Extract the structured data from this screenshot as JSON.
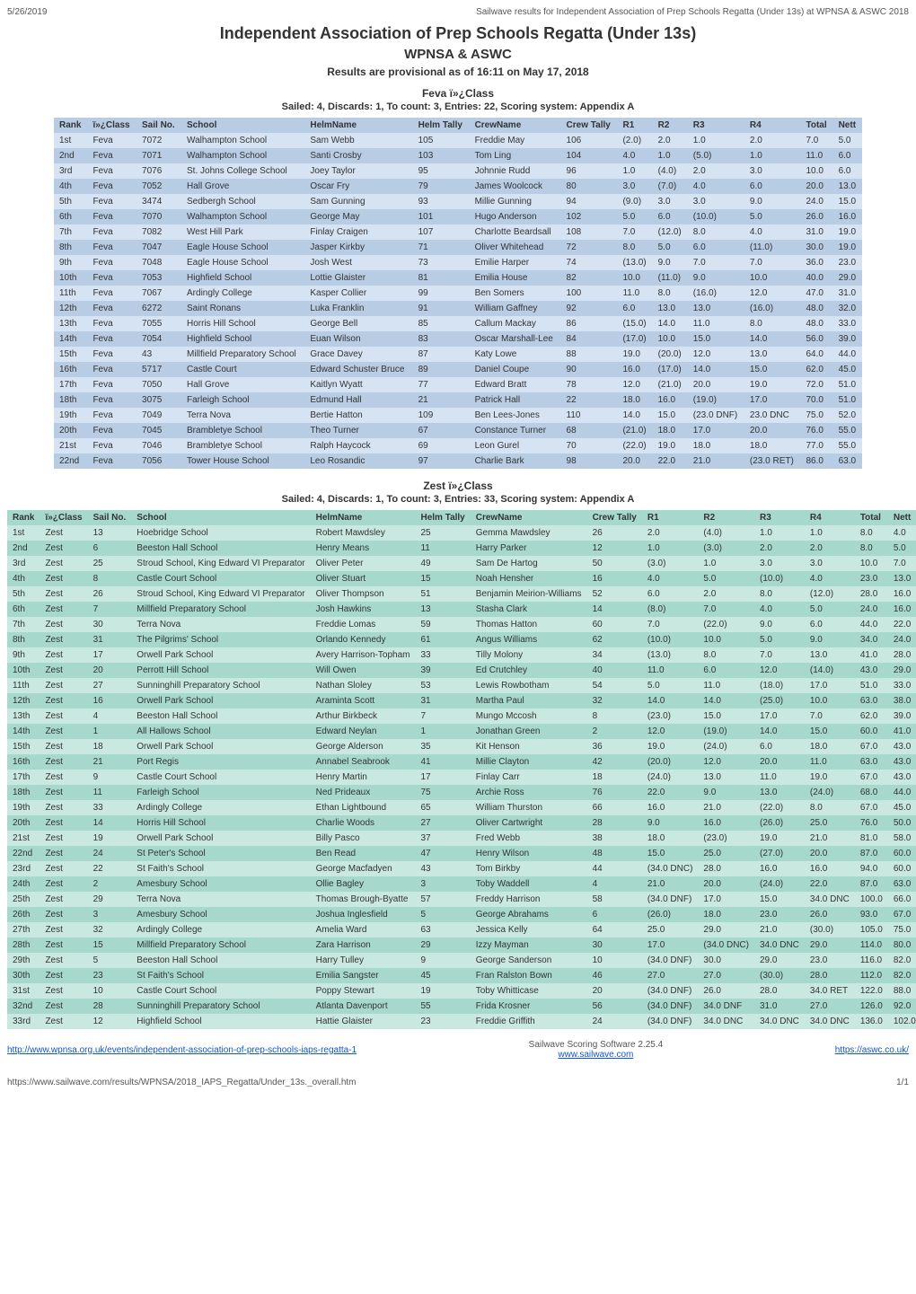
{
  "meta": {
    "date": "5/26/2019",
    "desc": "Sailwave results for Independent Association of Prep Schools Regatta (Under 13s) at WPNSA & ASWC 2018"
  },
  "titles": {
    "main": "Independent Association of Prep Schools Regatta (Under 13s)",
    "venue": "WPNSA & ASWC",
    "prov": "Results are provisional as of 16:11 on May 17, 2018",
    "feva": "Feva ï»¿Class",
    "fevaSub": "Sailed: 4, Discards: 1, To count: 3, Entries: 22, Scoring system: Appendix A",
    "zest": "Zest ï»¿Class",
    "zestSub": "Sailed: 4, Discards: 1, To count: 3, Entries: 33, Scoring system: Appendix A"
  },
  "fevaHeaders": [
    "Rank",
    "ï»¿Class",
    "Sail No.",
    "School",
    "HelmName",
    "Helm Tally",
    "CrewName",
    "Crew Tally",
    "R1",
    "R2",
    "R3",
    "R4",
    "Total",
    "Nett"
  ],
  "feva": [
    [
      "1st",
      "Feva",
      "7072",
      "Walhampton School",
      "Sam Webb",
      "105",
      "Freddie May",
      "106",
      "(2.0)",
      "2.0",
      "1.0",
      "2.0",
      "7.0",
      "5.0"
    ],
    [
      "2nd",
      "Feva",
      "7071",
      "Walhampton School",
      "Santi Crosby",
      "103",
      "Tom Ling",
      "104",
      "4.0",
      "1.0",
      "(5.0)",
      "1.0",
      "11.0",
      "6.0"
    ],
    [
      "3rd",
      "Feva",
      "7076",
      "St. Johns College School",
      "Joey Taylor",
      "95",
      "Johnnie Rudd",
      "96",
      "1.0",
      "(4.0)",
      "2.0",
      "3.0",
      "10.0",
      "6.0"
    ],
    [
      "4th",
      "Feva",
      "7052",
      "Hall Grove",
      "Oscar Fry",
      "79",
      "James Woolcock",
      "80",
      "3.0",
      "(7.0)",
      "4.0",
      "6.0",
      "20.0",
      "13.0"
    ],
    [
      "5th",
      "Feva",
      "3474",
      "Sedbergh School",
      "Sam Gunning",
      "93",
      "Millie Gunning",
      "94",
      "(9.0)",
      "3.0",
      "3.0",
      "9.0",
      "24.0",
      "15.0"
    ],
    [
      "6th",
      "Feva",
      "7070",
      "Walhampton School",
      "George May",
      "101",
      "Hugo Anderson",
      "102",
      "5.0",
      "6.0",
      "(10.0)",
      "5.0",
      "26.0",
      "16.0"
    ],
    [
      "7th",
      "Feva",
      "7082",
      "West Hill Park",
      "Finlay Craigen",
      "107",
      "Charlotte Beardsall",
      "108",
      "7.0",
      "(12.0)",
      "8.0",
      "4.0",
      "31.0",
      "19.0"
    ],
    [
      "8th",
      "Feva",
      "7047",
      "Eagle House School",
      "Jasper Kirkby",
      "71",
      "Oliver Whitehead",
      "72",
      "8.0",
      "5.0",
      "6.0",
      "(11.0)",
      "30.0",
      "19.0"
    ],
    [
      "9th",
      "Feva",
      "7048",
      "Eagle House School",
      "Josh West",
      "73",
      "Emilie Harper",
      "74",
      "(13.0)",
      "9.0",
      "7.0",
      "7.0",
      "36.0",
      "23.0"
    ],
    [
      "10th",
      "Feva",
      "7053",
      "Highfield School",
      "Lottie Glaister",
      "81",
      "Emilia House",
      "82",
      "10.0",
      "(11.0)",
      "9.0",
      "10.0",
      "40.0",
      "29.0"
    ],
    [
      "11th",
      "Feva",
      "7067",
      "Ardingly College",
      "Kasper Collier",
      "99",
      "Ben Somers",
      "100",
      "11.0",
      "8.0",
      "(16.0)",
      "12.0",
      "47.0",
      "31.0"
    ],
    [
      "12th",
      "Feva",
      "6272",
      "Saint Ronans",
      "Luka Franklin",
      "91",
      "William Gaffney",
      "92",
      "6.0",
      "13.0",
      "13.0",
      "(16.0)",
      "48.0",
      "32.0"
    ],
    [
      "13th",
      "Feva",
      "7055",
      "Horris Hill School",
      "George Bell",
      "85",
      "Callum Mackay",
      "86",
      "(15.0)",
      "14.0",
      "11.0",
      "8.0",
      "48.0",
      "33.0"
    ],
    [
      "14th",
      "Feva",
      "7054",
      "Highfield School",
      "Euan Wilson",
      "83",
      "Oscar Marshall-Lee",
      "84",
      "(17.0)",
      "10.0",
      "15.0",
      "14.0",
      "56.0",
      "39.0"
    ],
    [
      "15th",
      "Feva",
      "43",
      "Millfield Preparatory School",
      "Grace Davey",
      "87",
      "Katy Lowe",
      "88",
      "19.0",
      "(20.0)",
      "12.0",
      "13.0",
      "64.0",
      "44.0"
    ],
    [
      "16th",
      "Feva",
      "5717",
      "Castle Court",
      "Edward Schuster Bruce",
      "89",
      "Daniel Coupe",
      "90",
      "16.0",
      "(17.0)",
      "14.0",
      "15.0",
      "62.0",
      "45.0"
    ],
    [
      "17th",
      "Feva",
      "7050",
      "Hall Grove",
      "Kaitlyn Wyatt",
      "77",
      "Edward Bratt",
      "78",
      "12.0",
      "(21.0)",
      "20.0",
      "19.0",
      "72.0",
      "51.0"
    ],
    [
      "18th",
      "Feva",
      "3075",
      "Farleigh School",
      "Edmund Hall",
      "21",
      "Patrick Hall",
      "22",
      "18.0",
      "16.0",
      "(19.0)",
      "17.0",
      "70.0",
      "51.0"
    ],
    [
      "19th",
      "Feva",
      "7049",
      "Terra Nova",
      "Bertie Hatton",
      "109",
      "Ben Lees-Jones",
      "110",
      "14.0",
      "15.0",
      "(23.0 DNF)",
      "23.0 DNC",
      "75.0",
      "52.0"
    ],
    [
      "20th",
      "Feva",
      "7045",
      "Brambletye School",
      "Theo Turner",
      "67",
      "Constance Turner",
      "68",
      "(21.0)",
      "18.0",
      "17.0",
      "20.0",
      "76.0",
      "55.0"
    ],
    [
      "21st",
      "Feva",
      "7046",
      "Brambletye School",
      "Ralph Haycock",
      "69",
      "Leon Gurel",
      "70",
      "(22.0)",
      "19.0",
      "18.0",
      "18.0",
      "77.0",
      "55.0"
    ],
    [
      "22nd",
      "Feva",
      "7056",
      "Tower House School",
      "Leo Rosandic",
      "97",
      "Charlie Bark",
      "98",
      "20.0",
      "22.0",
      "21.0",
      "(23.0 RET)",
      "86.0",
      "63.0"
    ]
  ],
  "zestHeaders": [
    "Rank",
    "ï»¿Class",
    "Sail No.",
    "School",
    "HelmName",
    "Helm Tally",
    "CrewName",
    "Crew Tally",
    "R1",
    "R2",
    "R3",
    "R4",
    "Total",
    "Nett"
  ],
  "zest": [
    [
      "1st",
      "Zest",
      "13",
      "Hoebridge School",
      "Robert Mawdsley",
      "25",
      "Gemma Mawdsley",
      "26",
      "2.0",
      "(4.0)",
      "1.0",
      "1.0",
      "8.0",
      "4.0"
    ],
    [
      "2nd",
      "Zest",
      "6",
      "Beeston Hall School",
      "Henry Means",
      "11",
      "Harry Parker",
      "12",
      "1.0",
      "(3.0)",
      "2.0",
      "2.0",
      "8.0",
      "5.0"
    ],
    [
      "3rd",
      "Zest",
      "25",
      "Stroud School, King Edward VI Preparator",
      "Oliver Peter",
      "49",
      "Sam De Hartog",
      "50",
      "(3.0)",
      "1.0",
      "3.0",
      "3.0",
      "10.0",
      "7.0"
    ],
    [
      "4th",
      "Zest",
      "8",
      "Castle Court School",
      "Oliver Stuart",
      "15",
      "Noah Hensher",
      "16",
      "4.0",
      "5.0",
      "(10.0)",
      "4.0",
      "23.0",
      "13.0"
    ],
    [
      "5th",
      "Zest",
      "26",
      "Stroud School, King Edward VI Preparator",
      "Oliver Thompson",
      "51",
      "Benjamin Meirion-Williams",
      "52",
      "6.0",
      "2.0",
      "8.0",
      "(12.0)",
      "28.0",
      "16.0"
    ],
    [
      "6th",
      "Zest",
      "7",
      "Millfield Preparatory School",
      "Josh Hawkins",
      "13",
      "Stasha Clark",
      "14",
      "(8.0)",
      "7.0",
      "4.0",
      "5.0",
      "24.0",
      "16.0"
    ],
    [
      "7th",
      "Zest",
      "30",
      "Terra Nova",
      "Freddie Lomas",
      "59",
      "Thomas Hatton",
      "60",
      "7.0",
      "(22.0)",
      "9.0",
      "6.0",
      "44.0",
      "22.0"
    ],
    [
      "8th",
      "Zest",
      "31",
      "The Pilgrims' School",
      "Orlando Kennedy",
      "61",
      "Angus Williams",
      "62",
      "(10.0)",
      "10.0",
      "5.0",
      "9.0",
      "34.0",
      "24.0"
    ],
    [
      "9th",
      "Zest",
      "17",
      "Orwell Park School",
      "Avery Harrison-Topham",
      "33",
      "Tilly Molony",
      "34",
      "(13.0)",
      "8.0",
      "7.0",
      "13.0",
      "41.0",
      "28.0"
    ],
    [
      "10th",
      "Zest",
      "20",
      "Perrott Hill School",
      "Will Owen",
      "39",
      "Ed Crutchley",
      "40",
      "11.0",
      "6.0",
      "12.0",
      "(14.0)",
      "43.0",
      "29.0"
    ],
    [
      "11th",
      "Zest",
      "27",
      "Sunninghill Preparatory School",
      "Nathan Sloley",
      "53",
      "Lewis Rowbotham",
      "54",
      "5.0",
      "11.0",
      "(18.0)",
      "17.0",
      "51.0",
      "33.0"
    ],
    [
      "12th",
      "Zest",
      "16",
      "Orwell Park School",
      "Araminta Scott",
      "31",
      "Martha Paul",
      "32",
      "14.0",
      "14.0",
      "(25.0)",
      "10.0",
      "63.0",
      "38.0"
    ],
    [
      "13th",
      "Zest",
      "4",
      "Beeston Hall School",
      "Arthur Birkbeck",
      "7",
      "Mungo Mccosh",
      "8",
      "(23.0)",
      "15.0",
      "17.0",
      "7.0",
      "62.0",
      "39.0"
    ],
    [
      "14th",
      "Zest",
      "1",
      "All Hallows School",
      "Edward Neylan",
      "1",
      "Jonathan Green",
      "2",
      "12.0",
      "(19.0)",
      "14.0",
      "15.0",
      "60.0",
      "41.0"
    ],
    [
      "15th",
      "Zest",
      "18",
      "Orwell Park School",
      "George Alderson",
      "35",
      "Kit Henson",
      "36",
      "19.0",
      "(24.0)",
      "6.0",
      "18.0",
      "67.0",
      "43.0"
    ],
    [
      "16th",
      "Zest",
      "21",
      "Port Regis",
      "Annabel Seabrook",
      "41",
      "Millie Clayton",
      "42",
      "(20.0)",
      "12.0",
      "20.0",
      "11.0",
      "63.0",
      "43.0"
    ],
    [
      "17th",
      "Zest",
      "9",
      "Castle Court School",
      "Henry Martin",
      "17",
      "Finlay Carr",
      "18",
      "(24.0)",
      "13.0",
      "11.0",
      "19.0",
      "67.0",
      "43.0"
    ],
    [
      "18th",
      "Zest",
      "11",
      "Farleigh School",
      "Ned Prideaux",
      "75",
      "Archie Ross",
      "76",
      "22.0",
      "9.0",
      "13.0",
      "(24.0)",
      "68.0",
      "44.0"
    ],
    [
      "19th",
      "Zest",
      "33",
      "Ardingly College",
      "Ethan Lightbound",
      "65",
      "William Thurston",
      "66",
      "16.0",
      "21.0",
      "(22.0)",
      "8.0",
      "67.0",
      "45.0"
    ],
    [
      "20th",
      "Zest",
      "14",
      "Horris Hill School",
      "Charlie Woods",
      "27",
      "Oliver Cartwright",
      "28",
      "9.0",
      "16.0",
      "(26.0)",
      "25.0",
      "76.0",
      "50.0"
    ],
    [
      "21st",
      "Zest",
      "19",
      "Orwell Park School",
      "Billy Pasco",
      "37",
      "Fred Webb",
      "38",
      "18.0",
      "(23.0)",
      "19.0",
      "21.0",
      "81.0",
      "58.0"
    ],
    [
      "22nd",
      "Zest",
      "24",
      "St Peter's School",
      "Ben Read",
      "47",
      "Henry Wilson",
      "48",
      "15.0",
      "25.0",
      "(27.0)",
      "20.0",
      "87.0",
      "60.0"
    ],
    [
      "23rd",
      "Zest",
      "22",
      "St Faith's School",
      "George Macfadyen",
      "43",
      "Tom Birkby",
      "44",
      "(34.0 DNC)",
      "28.0",
      "16.0",
      "16.0",
      "94.0",
      "60.0"
    ],
    [
      "24th",
      "Zest",
      "2",
      "Amesbury School",
      "Ollie Bagley",
      "3",
      "Toby Waddell",
      "4",
      "21.0",
      "20.0",
      "(24.0)",
      "22.0",
      "87.0",
      "63.0"
    ],
    [
      "25th",
      "Zest",
      "29",
      "Terra Nova",
      "Thomas Brough-Byatte",
      "57",
      "Freddy Harrison",
      "58",
      "(34.0 DNF)",
      "17.0",
      "15.0",
      "34.0 DNC",
      "100.0",
      "66.0"
    ],
    [
      "26th",
      "Zest",
      "3",
      "Amesbury School",
      "Joshua Inglesfield",
      "5",
      "George Abrahams",
      "6",
      "(26.0)",
      "18.0",
      "23.0",
      "26.0",
      "93.0",
      "67.0"
    ],
    [
      "27th",
      "Zest",
      "32",
      "Ardingly College",
      "Amelia Ward",
      "63",
      "Jessica Kelly",
      "64",
      "25.0",
      "29.0",
      "21.0",
      "(30.0)",
      "105.0",
      "75.0"
    ],
    [
      "28th",
      "Zest",
      "15",
      "Millfield Preparatory School",
      "Zara Harrison",
      "29",
      "Izzy Mayman",
      "30",
      "17.0",
      "(34.0 DNC)",
      "34.0 DNC",
      "29.0",
      "114.0",
      "80.0"
    ],
    [
      "29th",
      "Zest",
      "5",
      "Beeston Hall School",
      "Harry Tulley",
      "9",
      "George Sanderson",
      "10",
      "(34.0 DNF)",
      "30.0",
      "29.0",
      "23.0",
      "116.0",
      "82.0"
    ],
    [
      "30th",
      "Zest",
      "23",
      "St Faith's School",
      "Emilia Sangster",
      "45",
      "Fran Ralston Bown",
      "46",
      "27.0",
      "27.0",
      "(30.0)",
      "28.0",
      "112.0",
      "82.0"
    ],
    [
      "31st",
      "Zest",
      "10",
      "Castle Court School",
      "Poppy Stewart",
      "19",
      "Toby Whitticase",
      "20",
      "(34.0 DNF)",
      "26.0",
      "28.0",
      "34.0 RET",
      "122.0",
      "88.0"
    ],
    [
      "32nd",
      "Zest",
      "28",
      "Sunninghill Preparatory School",
      "Atlanta Davenport",
      "55",
      "Frida Krosner",
      "56",
      "(34.0 DNF)",
      "34.0 DNF",
      "31.0",
      "27.0",
      "126.0",
      "92.0"
    ],
    [
      "33rd",
      "Zest",
      "12",
      "Highfield School",
      "Hattie Glaister",
      "23",
      "Freddie Griffith",
      "24",
      "(34.0 DNF)",
      "34.0 DNC",
      "34.0 DNC",
      "34.0 DNC",
      "136.0",
      "102.0"
    ]
  ],
  "footer": {
    "leftLink": "http://www.wpnsa.org.uk/events/independent-association-of-prep-schools-iaps-regatta-1",
    "center1": "Sailwave Scoring Software 2.25.4",
    "center2": "www.sailwave.com",
    "rightLink": "https://aswc.co.uk/",
    "bottomUrl": "https://www.sailwave.com/results/WPNSA/2018_IAPS_Regatta/Under_13s._overall.htm",
    "pageNum": "1/1"
  },
  "style": {
    "blueLight": "#d6e3f2",
    "blueDark": "#b8cce4",
    "tealLight": "#c9e8e0",
    "tealDark": "#a6d9cc"
  }
}
